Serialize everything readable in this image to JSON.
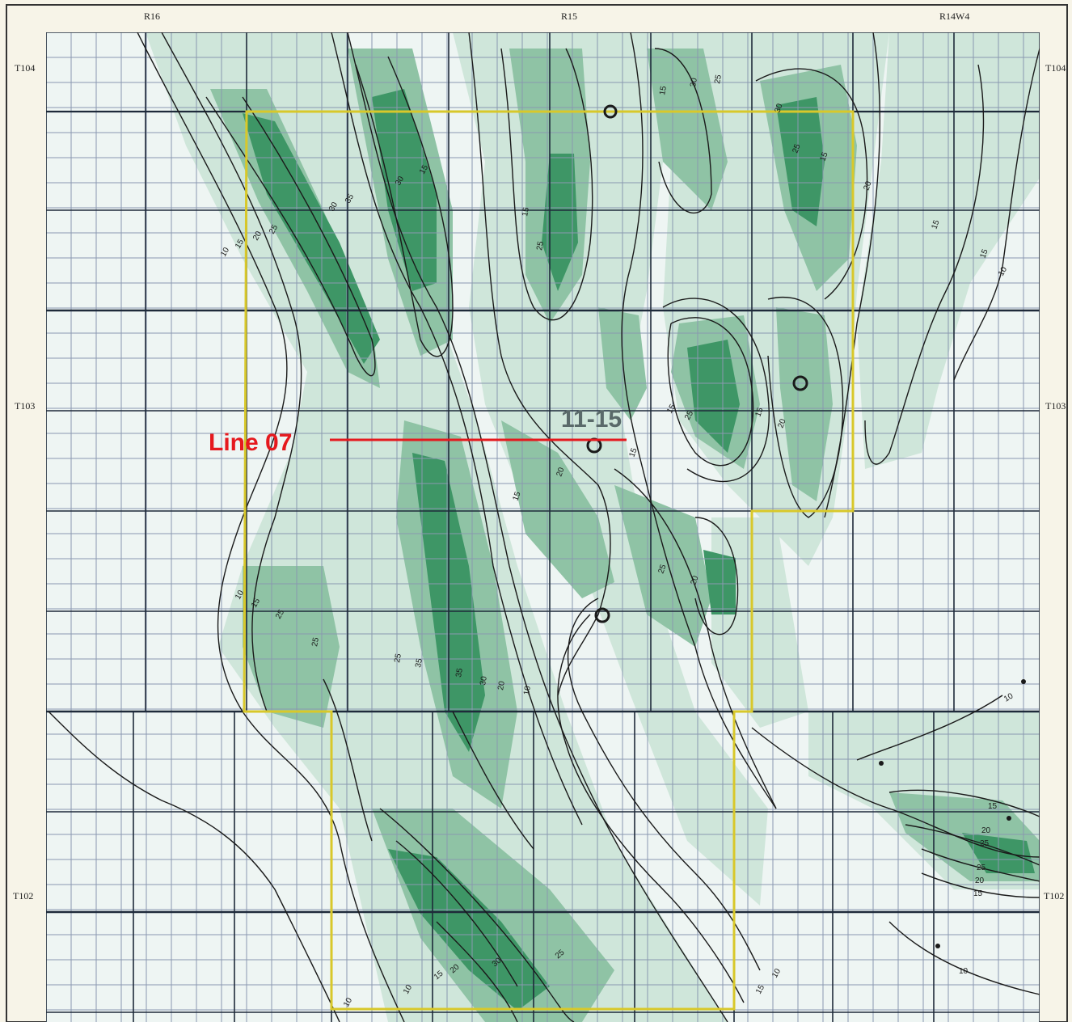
{
  "map": {
    "range_labels": [
      "R16",
      "R15",
      "R14W4"
    ],
    "township_labels_left": [
      "T104",
      "T103",
      "T102"
    ],
    "township_labels_right": [
      "T104",
      "T103",
      "T102"
    ],
    "seismic_line": {
      "label": "Line 07",
      "color": "#e5191e"
    },
    "well_label": "11-15",
    "contour_labels": [
      "10",
      "15",
      "20",
      "25",
      "30",
      "35"
    ],
    "colors": {
      "background": "#f7f4e8",
      "grid_fine": "#8a98b0",
      "grid_major": "#1e2a3a",
      "shade_light": "#cfe6da",
      "shade_mid": "#8fc3a5",
      "shade_dark": "#3e9666",
      "boundary": "#d8c82a",
      "contour": "#1a1a1a",
      "well": "#1a1a1a"
    }
  }
}
